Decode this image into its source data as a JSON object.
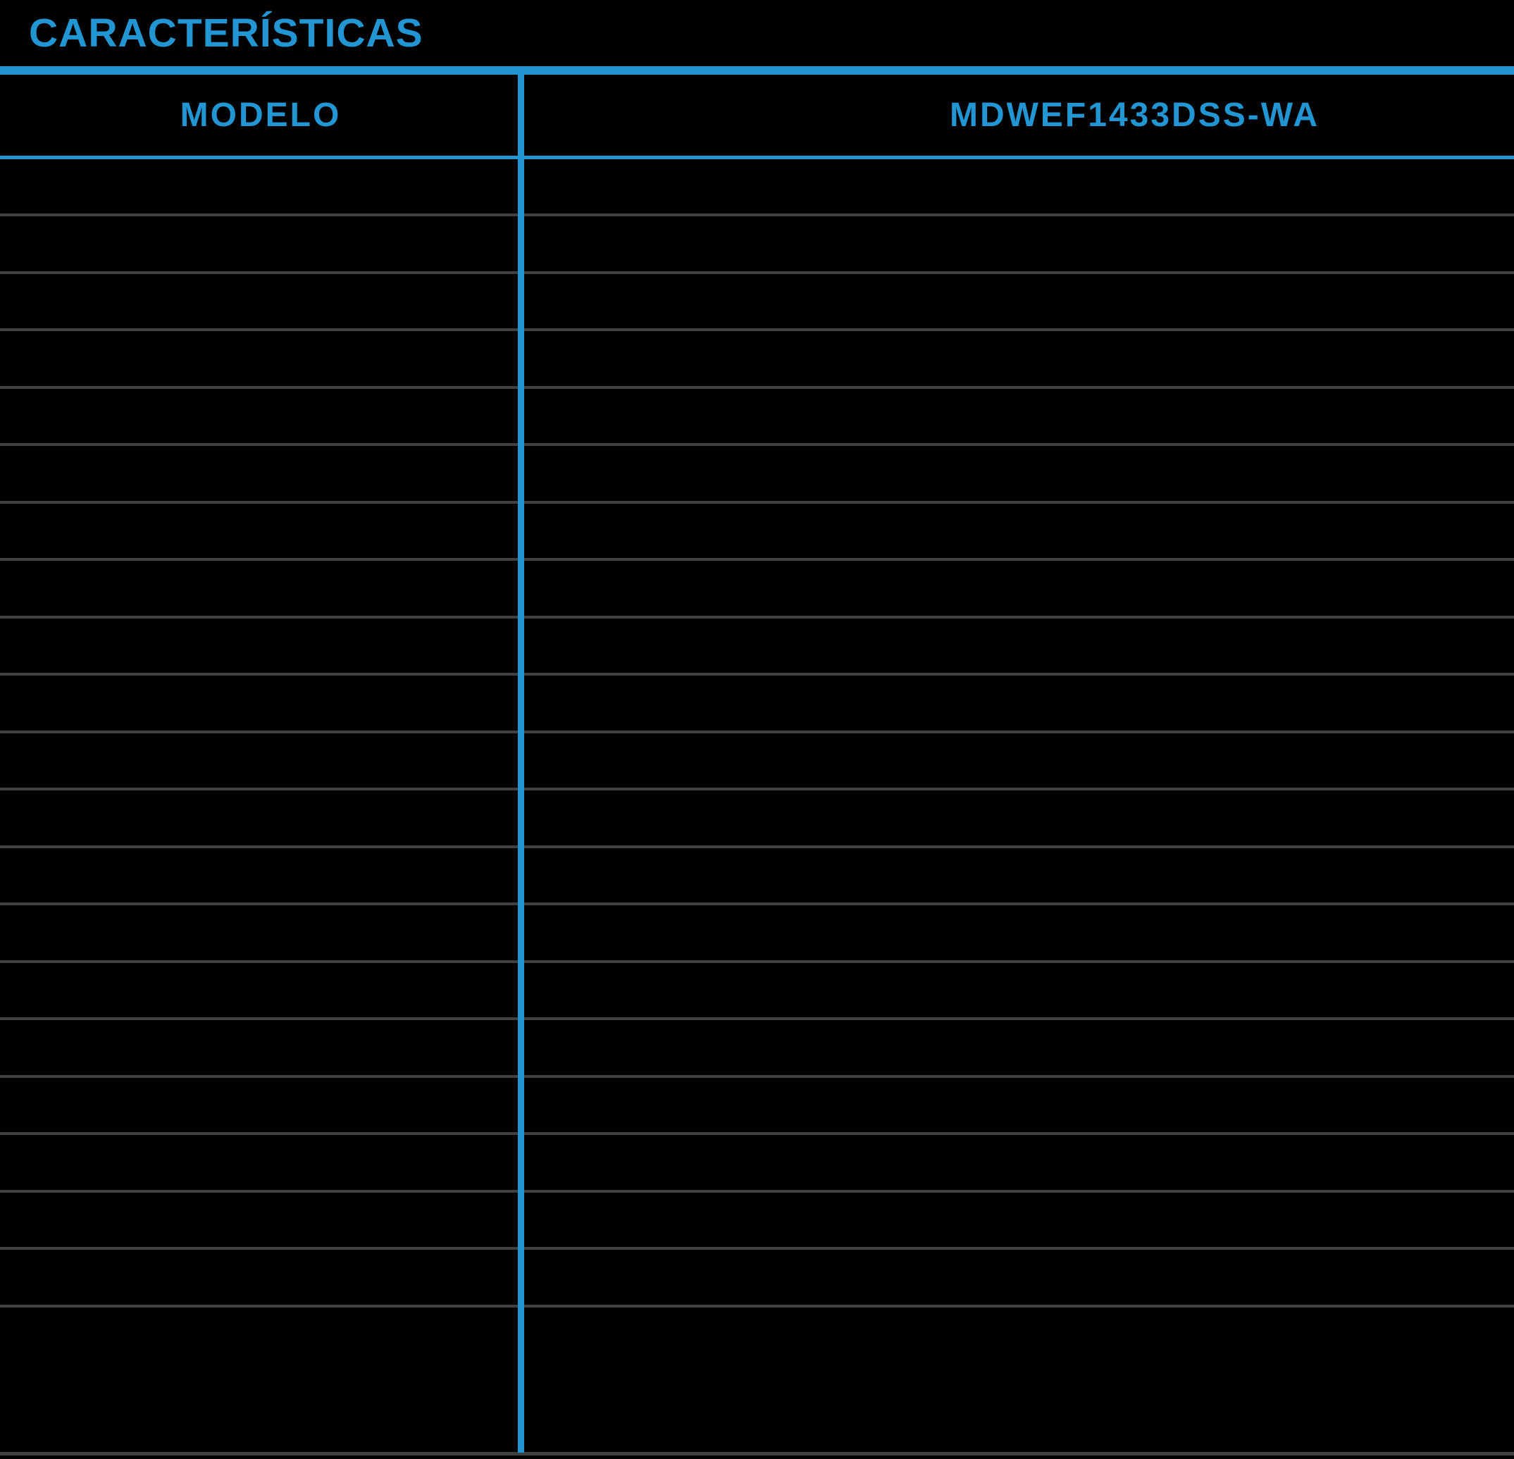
{
  "page": {
    "title": "CARACTERÍSTICAS"
  },
  "table": {
    "header": {
      "feature_label": "MODELO",
      "model_label": "MDWEF1433DSS-WA"
    },
    "rows": [
      {
        "feature": "",
        "value": ""
      },
      {
        "feature": "",
        "value": ""
      },
      {
        "feature": "",
        "value": ""
      },
      {
        "feature": "",
        "value": ""
      },
      {
        "feature": "",
        "value": ""
      },
      {
        "feature": "",
        "value": ""
      },
      {
        "feature": "",
        "value": ""
      },
      {
        "feature": "",
        "value": ""
      },
      {
        "feature": "",
        "value": ""
      },
      {
        "feature": "",
        "value": ""
      },
      {
        "feature": "",
        "value": ""
      },
      {
        "feature": "",
        "value": ""
      },
      {
        "feature": "",
        "value": ""
      },
      {
        "feature": "",
        "value": ""
      },
      {
        "feature": "",
        "value": ""
      },
      {
        "feature": "",
        "value": ""
      },
      {
        "feature": "",
        "value": ""
      },
      {
        "feature": "",
        "value": ""
      },
      {
        "feature": "",
        "value": ""
      },
      {
        "feature": "",
        "value": ""
      },
      {
        "feature": "",
        "value": ""
      }
    ]
  },
  "colors": {
    "accent_blue": "#2295d3",
    "divider_gray": "#3f4245",
    "background": "#000000"
  }
}
